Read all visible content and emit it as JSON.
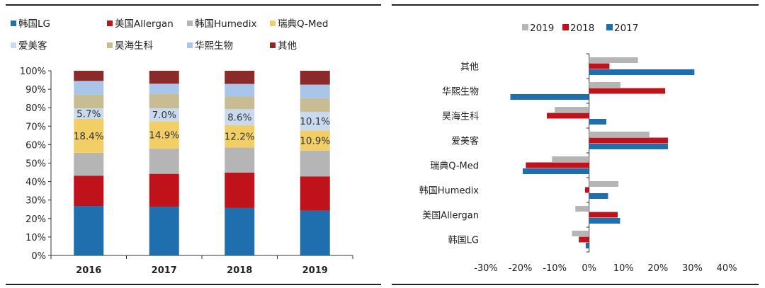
{
  "chart_data": [
    {
      "type": "bar",
      "stacked": true,
      "normalized": true,
      "categories": [
        "2016",
        "2017",
        "2018",
        "2019"
      ],
      "series": [
        {
          "name": "韩国LG",
          "color": "#1f6fae",
          "values": [
            26.8,
            26.4,
            25.7,
            24.3
          ]
        },
        {
          "name": "美国Allergan",
          "color": "#c0121b",
          "values": [
            16.4,
            17.8,
            19.2,
            18.5
          ]
        },
        {
          "name": "韩国Humedix",
          "color": "#b5b5b5",
          "values": [
            12.4,
            13.6,
            13.5,
            14.0
          ]
        },
        {
          "name": "瑞典Q-Med",
          "color": "#f2cf66",
          "values": [
            18.4,
            14.9,
            12.2,
            10.9
          ]
        },
        {
          "name": "爱美客",
          "color": "#c9daf0",
          "values": [
            5.7,
            7.0,
            8.6,
            10.1
          ]
        },
        {
          "name": "昊海生科",
          "color": "#c8bd92",
          "values": [
            7.3,
            7.8,
            6.8,
            7.3
          ]
        },
        {
          "name": "华熙生物",
          "color": "#a9c6ea",
          "values": [
            7.5,
            5.5,
            6.9,
            7.4
          ]
        },
        {
          "name": "其他",
          "color": "#8b2a2a",
          "values": [
            5.5,
            7.0,
            7.1,
            7.5
          ]
        }
      ],
      "data_labels": [
        {
          "series": "瑞典Q-Med",
          "texts": [
            "18.4%",
            "14.9%",
            "12.2%",
            "10.9%"
          ]
        },
        {
          "series": "爱美客",
          "texts": [
            "5.7%",
            "7.0%",
            "8.6%",
            "10.1%"
          ]
        }
      ],
      "ylim": [
        0,
        100
      ],
      "yticks": [
        "0%",
        "10%",
        "20%",
        "30%",
        "40%",
        "50%",
        "60%",
        "70%",
        "80%",
        "90%",
        "100%"
      ],
      "legend": "top"
    },
    {
      "type": "bar",
      "orientation": "horizontal",
      "categories": [
        "其他",
        "华熙生物",
        "昊海生科",
        "爱美客",
        "瑞典Q-Med",
        "韩国Humedix",
        "美国Allergan",
        "韩国LG"
      ],
      "series": [
        {
          "name": "2019",
          "color": "#b5b5b5",
          "values": [
            14.2,
            9.1,
            -10.0,
            17.5,
            -10.8,
            8.5,
            -4.0,
            -5.0
          ]
        },
        {
          "name": "2018",
          "color": "#c0121b",
          "values": [
            5.9,
            22.1,
            -12.3,
            22.9,
            -18.4,
            -1.2,
            8.3,
            -3.0
          ]
        },
        {
          "name": "2017",
          "color": "#1f6fae",
          "values": [
            30.6,
            -22.9,
            5.0,
            22.9,
            -19.3,
            5.5,
            9.0,
            -1.0
          ]
        }
      ],
      "xlim": [
        -30,
        40
      ],
      "xticks": [
        "-30%",
        "-20%",
        "-10%",
        "0%",
        "10%",
        "20%",
        "30%",
        "40%"
      ],
      "legend": "top"
    }
  ]
}
